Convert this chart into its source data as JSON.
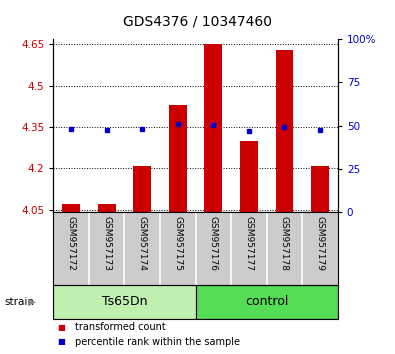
{
  "title": "GDS4376 / 10347460",
  "samples": [
    "GSM957172",
    "GSM957173",
    "GSM957174",
    "GSM957175",
    "GSM957176",
    "GSM957177",
    "GSM957178",
    "GSM957179"
  ],
  "red_values": [
    4.07,
    4.07,
    4.21,
    4.43,
    4.65,
    4.3,
    4.63,
    4.21
  ],
  "blue_values": [
    4.342,
    4.338,
    4.342,
    4.36,
    4.358,
    4.336,
    4.35,
    4.338
  ],
  "ylim_left": [
    4.04,
    4.67
  ],
  "ylim_right": [
    0,
    100
  ],
  "yticks_left": [
    4.05,
    4.2,
    4.35,
    4.5,
    4.65
  ],
  "yticks_right": [
    0,
    25,
    50,
    75,
    100
  ],
  "ytick_labels_left": [
    "4.05",
    "4.2",
    "4.35",
    "4.5",
    "4.65"
  ],
  "ytick_labels_right": [
    "0",
    "25",
    "50",
    "75",
    "100%"
  ],
  "bar_color": "#cc0000",
  "dot_color": "#0000cc",
  "bar_width": 0.5,
  "groups": [
    {
      "label": "Ts65Dn",
      "indices": [
        0,
        1,
        2,
        3
      ],
      "facecolor": "#c0f0b0"
    },
    {
      "label": "control",
      "indices": [
        4,
        5,
        6,
        7
      ],
      "facecolor": "#55dd55"
    }
  ],
  "legend_items": [
    {
      "color": "#cc0000",
      "label": "transformed count"
    },
    {
      "color": "#0000cc",
      "label": "percentile rank within the sample"
    }
  ],
  "baseline": 4.04,
  "tick_color_left": "#cc0000",
  "tick_color_right": "#0000cc",
  "label_bg_color": "#cccccc",
  "label_sep_color": "#ffffff",
  "plot_bg_color": "#ffffff",
  "fig_bg_color": "#ffffff"
}
